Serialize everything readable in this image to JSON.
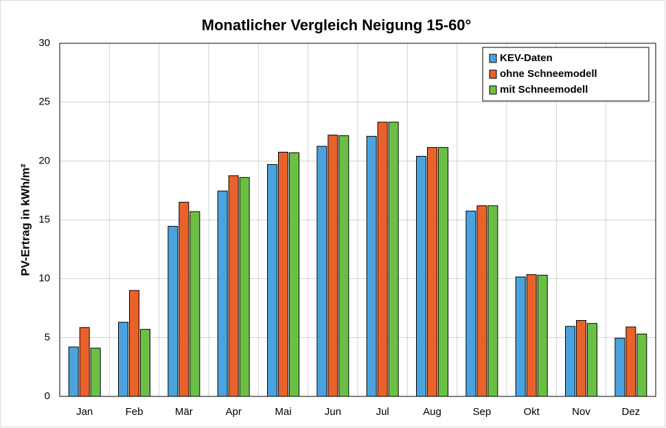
{
  "chart_data": {
    "type": "bar",
    "title": "Monatlicher Vergleich Neigung 15-60°",
    "y_label": "PV-Ertrag in kWh/m²",
    "categories": [
      "Jan",
      "Feb",
      "Mär",
      "Apr",
      "Mai",
      "Jun",
      "Jul",
      "Aug",
      "Sep",
      "Okt",
      "Nov",
      "Dez"
    ],
    "series": [
      {
        "name": "KEV-Daten",
        "color": "#4aa3df",
        "values": [
          4.2,
          6.3,
          14.45,
          17.45,
          19.7,
          21.25,
          22.1,
          20.4,
          15.75,
          10.15,
          5.95,
          4.95
        ]
      },
      {
        "name": "ohne Schneemodell",
        "color": "#e8622a",
        "values": [
          5.85,
          9.0,
          16.5,
          18.75,
          20.75,
          22.2,
          23.3,
          21.15,
          16.2,
          10.35,
          6.45,
          5.9
        ]
      },
      {
        "name": "mit Schneemodell",
        "color": "#6bbf45",
        "values": [
          4.1,
          5.7,
          15.7,
          18.6,
          20.7,
          22.15,
          23.3,
          21.15,
          16.2,
          10.3,
          6.2,
          5.3
        ]
      }
    ],
    "ylim": [
      0,
      30
    ],
    "yticks": [
      0,
      5,
      10,
      15,
      20,
      25,
      30
    ],
    "grid": true,
    "legend": "top-right"
  }
}
